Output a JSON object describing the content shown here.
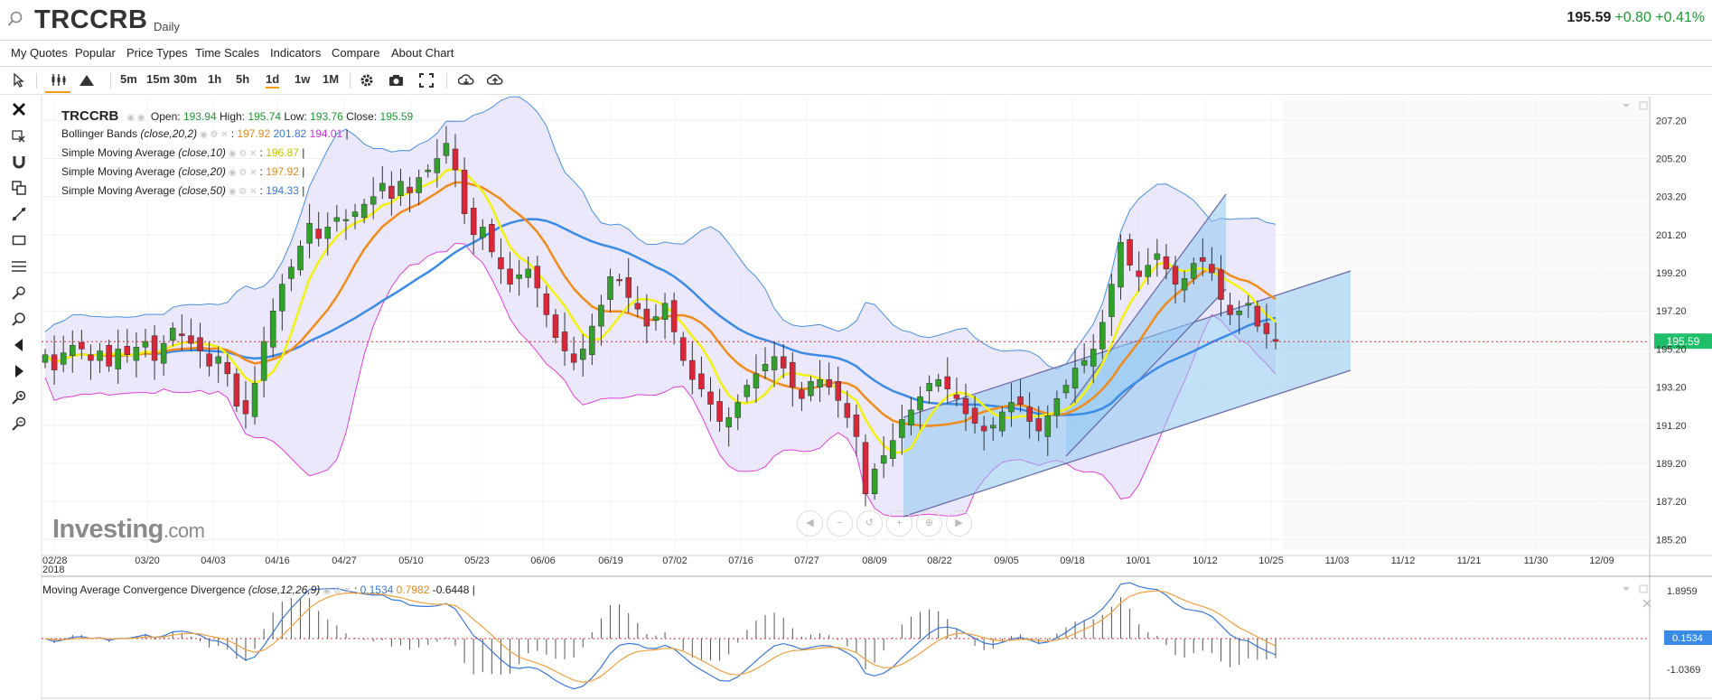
{
  "header": {
    "symbol": "TRCCRB",
    "interval": "Daily",
    "last": "195.59",
    "change": "+0.80 +0.41%"
  },
  "menu": [
    "My Quotes",
    "Popular",
    "Price Types",
    "Time Scales",
    "Indicators",
    "Compare",
    "About Chart"
  ],
  "toolbar": {
    "intervals": [
      "5m",
      "15m",
      "30m",
      "1h",
      "5h",
      "1d",
      "1w",
      "1M"
    ],
    "active": "1d"
  },
  "legend": {
    "symbol": "TRCCRB",
    "open_label": "Open:",
    "open": "193.94",
    "high_label": "High:",
    "high": "195.74",
    "low_label": "Low:",
    "low": "193.76",
    "close_label": "Close:",
    "close": "195.59",
    "bb_name": "Bollinger Bands",
    "bb_params": "(close,20,2)",
    "bb_mid": "197.92",
    "bb_upper": "201.82",
    "bb_lower": "194.01",
    "sma10_name": "Simple Moving Average",
    "sma10_params": "(close,10)",
    "sma10_val": "196.87",
    "sma20_name": "Simple Moving Average",
    "sma20_params": "(close,20)",
    "sma20_val": "197.92",
    "sma50_name": "Simple Moving Average",
    "sma50_params": "(close,50)",
    "sma50_val": "194.33",
    "macd_name": "Moving Average Convergence Divergence",
    "macd_params": "(close,12,26,9)",
    "macd_val": "0.1534",
    "macd_signal": "0.7982",
    "macd_hist": "-0.6448"
  },
  "watermark": {
    "main": "Investing",
    "suffix": ".com"
  },
  "colors": {
    "up": "#33a02c",
    "down": "#d62839",
    "bb_fill": "#dcd8f7",
    "bb_upper": "#4a90e2",
    "bb_lower": "#e040d8",
    "sma10": "#f2f20e",
    "sma20": "#f08c1c",
    "sma50": "#3b8be6",
    "channel": "#8fc8f0",
    "macd": "#3b79d8",
    "signal": "#f0a040"
  },
  "chart_data": [
    {
      "type": "candlestick",
      "title": "TRCCRB Daily",
      "ylim": [
        184.6,
        208.4
      ],
      "y_ticks": [
        "207.20",
        "205.20",
        "203.20",
        "201.20",
        "199.20",
        "197.20",
        "195.20",
        "193.20",
        "191.20",
        "189.20",
        "187.20",
        "185.20"
      ],
      "x_ticks": [
        "02/28",
        "03/20",
        "04/03",
        "04/16",
        "04/27",
        "05/10",
        "05/23",
        "06/06",
        "06/19",
        "07/02",
        "07/16",
        "07/27",
        "08/09",
        "08/22",
        "09/05",
        "09/18",
        "10/01",
        "10/12",
        "10/25",
        "11/03",
        "11/12",
        "11/21",
        "11/30",
        "12/09"
      ],
      "x_year": "2018",
      "last_price_label": "195.59",
      "last_price": 195.59,
      "close_series": [
        194.9,
        194.1,
        195.0,
        195.4,
        195.2,
        194.6,
        195.1,
        194.3,
        195.2,
        194.9,
        195.3,
        195.6,
        194.6,
        195.5,
        196.3,
        195.9,
        195.5,
        195.1,
        194.3,
        194.8,
        193.9,
        192.2,
        191.8,
        193.4,
        195.6,
        197.2,
        198.6,
        199.5,
        200.6,
        201.8,
        201.0,
        201.6,
        202.1,
        202.0,
        202.4,
        202.8,
        203.2,
        203.9,
        203.1,
        204.0,
        203.4,
        204.2,
        204.6,
        205.2,
        206.0,
        204.6,
        202.3,
        201.2,
        201.6,
        200.3,
        199.4,
        198.6,
        199.1,
        199.4,
        198.4,
        197.0,
        195.8,
        195.1,
        194.5,
        195.2,
        196.4,
        197.5,
        199.0,
        198.8,
        197.9,
        197.3,
        196.4,
        196.9,
        197.6,
        196.1,
        194.6,
        193.6,
        193.1,
        192.3,
        191.4,
        191.6,
        192.4,
        193.3,
        193.9,
        194.4,
        194.8,
        194.2,
        193.2,
        192.6,
        193.5,
        193.6,
        193.2,
        192.5,
        191.6,
        190.6,
        187.6,
        188.9,
        189.6,
        190.4,
        191.5,
        192.0,
        192.7,
        193.4,
        193.6,
        193.1,
        192.6,
        191.8,
        191.3,
        190.9,
        191.2,
        191.9,
        192.4,
        192.3,
        191.4,
        190.9,
        191.7,
        192.6,
        193.3,
        194.2,
        194.6,
        195.2,
        196.6,
        198.6,
        200.8,
        199.6,
        199.0,
        199.6,
        200.2,
        199.4,
        198.6,
        198.9,
        199.7,
        199.8,
        199.2,
        197.8,
        197.0,
        197.2,
        197.6,
        196.4,
        196.0,
        195.6
      ]
    },
    {
      "type": "line",
      "title": "Moving Average Convergence Divergence (close,12,26,9)",
      "y_ticks": [
        "1.8959",
        "-1.0369"
      ],
      "last_value_label": "0.1534",
      "macd": 0.1534,
      "signal": 0.7982,
      "histogram": -0.6448
    }
  ]
}
